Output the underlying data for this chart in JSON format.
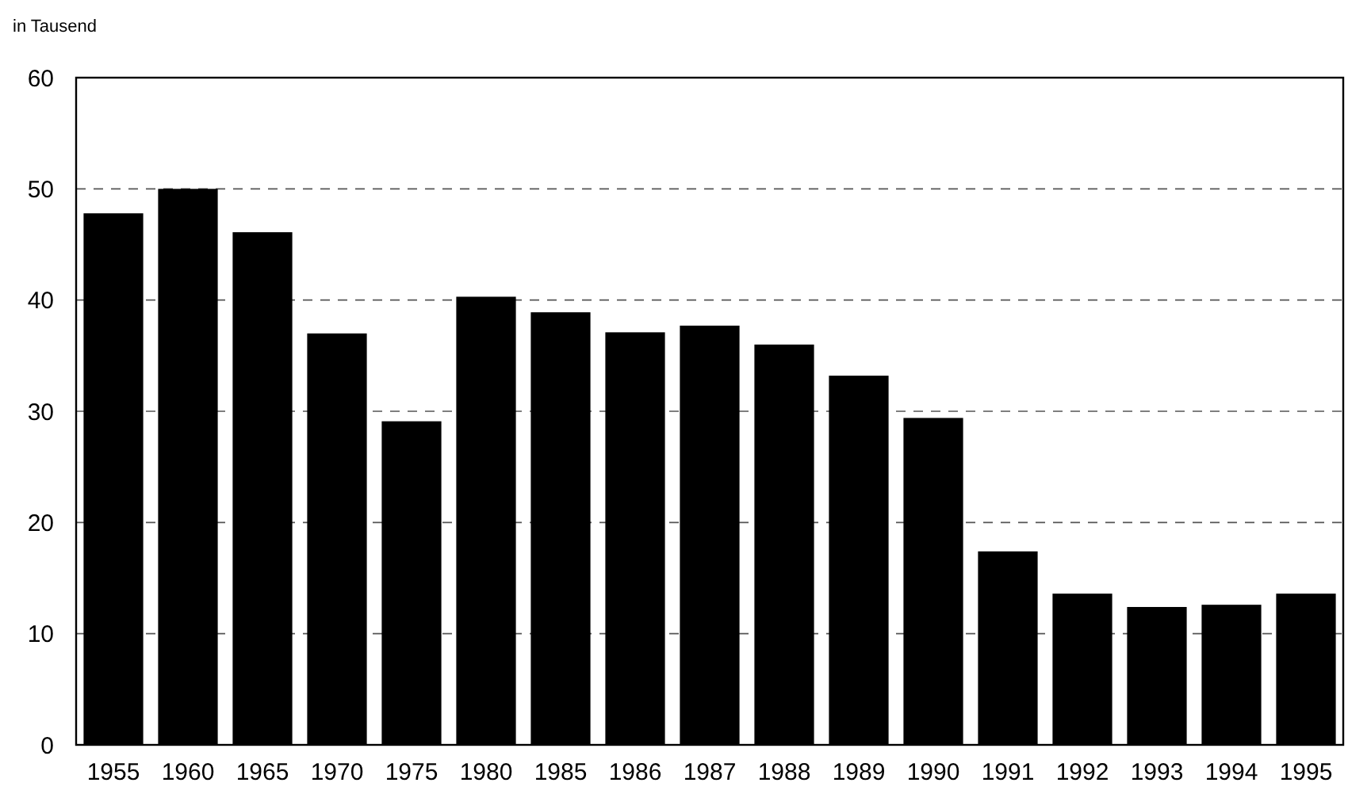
{
  "chart_data": {
    "type": "bar",
    "ylabel": "in Tausend",
    "categories": [
      "1955",
      "1960",
      "1965",
      "1970",
      "1975",
      "1980",
      "1985",
      "1986",
      "1987",
      "1988",
      "1989",
      "1990",
      "1991",
      "1992",
      "1993",
      "1994",
      "1995"
    ],
    "values": [
      47.8,
      50,
      46.1,
      37,
      29.1,
      40.3,
      38.9,
      37.1,
      37.7,
      36,
      33.2,
      29.4,
      17.4,
      13.6,
      12.4,
      12.6,
      13.6
    ],
    "color": "#000000",
    "ylim": [
      0,
      60
    ],
    "yticks": [
      0,
      10,
      20,
      30,
      40,
      50,
      60
    ],
    "grid": "y"
  }
}
